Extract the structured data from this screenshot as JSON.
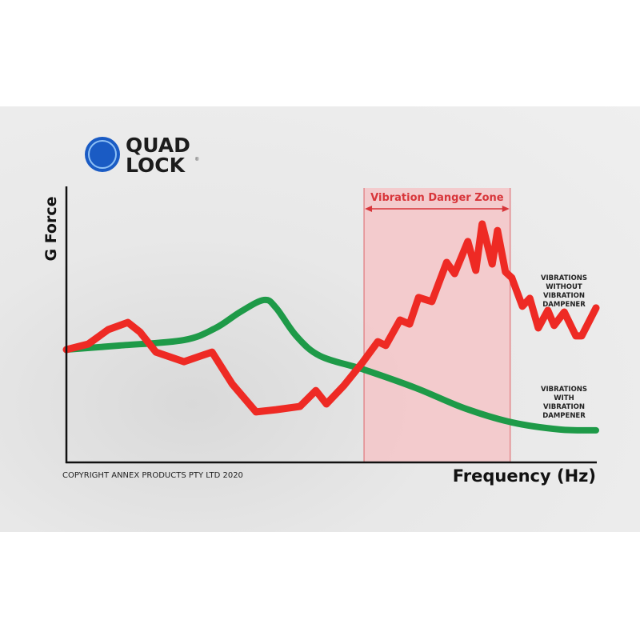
{
  "brand": {
    "name_line1": "QUAD",
    "name_line2": "LOCK",
    "registered": "®",
    "color": "#1a5bc4"
  },
  "copyright": "COPYRIGHT ANNEX PRODUCTS PTY LTD 2020",
  "chart_data": {
    "type": "line",
    "title": "",
    "xlabel": "Frequency (Hz)",
    "ylabel": "G Force",
    "xlim": [
      0,
      100
    ],
    "ylim": [
      0,
      100
    ],
    "axis_ticks": false,
    "grid": false,
    "highlight_band": {
      "label": "Vibration Danger Zone",
      "x": [
        56.2,
        83.8
      ],
      "color": "#f5c6c8",
      "edge_color": "#e0777b"
    },
    "series": [
      {
        "name": "VIBRATIONS WITHOUT VIBRATION DAMPENER",
        "name_lines": [
          "VIBRATIONS",
          "WITHOUT",
          "VIBRATION",
          "DAMPENER"
        ],
        "color": "#ee2a24",
        "smooth": false,
        "x": [
          0,
          4.1,
          7.9,
          11.6,
          13.9,
          16.9,
          22.2,
          27.5,
          31.3,
          35.8,
          39.6,
          44.1,
          47.1,
          49.1,
          52.4,
          55.9,
          58.8,
          60.3,
          63.0,
          64.8,
          66.5,
          69.0,
          71.8,
          73.3,
          75.8,
          77.3,
          78.5,
          80.4,
          81.4,
          82.9,
          84.1,
          86.1,
          87.5,
          89.1,
          90.9,
          92.1,
          94.0,
          96.2,
          97.3,
          100
        ],
        "y": [
          41.1,
          43.1,
          48.4,
          51.0,
          47.5,
          40.2,
          36.7,
          40.2,
          28.6,
          18.4,
          19.2,
          20.4,
          26.2,
          21.3,
          28.0,
          36.4,
          44.0,
          42.6,
          51.9,
          50.4,
          60.1,
          58.6,
          72.9,
          68.8,
          80.5,
          70.0,
          86.9,
          72.3,
          84.5,
          69.4,
          67.3,
          56.9,
          59.8,
          49.0,
          55.4,
          49.9,
          54.8,
          46.1,
          46.1,
          56.3
        ]
      },
      {
        "name": "VIBRATIONS WITH VIBRATION DAMPENER",
        "name_lines": [
          "VIBRATIONS",
          "WITH",
          "VIBRATION",
          "DAMPENER"
        ],
        "color": "#1e9a48",
        "smooth": true,
        "x": [
          0,
          10.1,
          22.2,
          28.2,
          32.8,
          37.3,
          39.6,
          43.4,
          47.9,
          56.2,
          66.0,
          75.1,
          84.1,
          93.2,
          100
        ],
        "y": [
          41.1,
          42.6,
          44.6,
          49.0,
          54.8,
          59.2,
          56.3,
          46.1,
          38.8,
          33.8,
          27.1,
          19.8,
          14.6,
          12.0,
          11.7
        ]
      }
    ]
  }
}
